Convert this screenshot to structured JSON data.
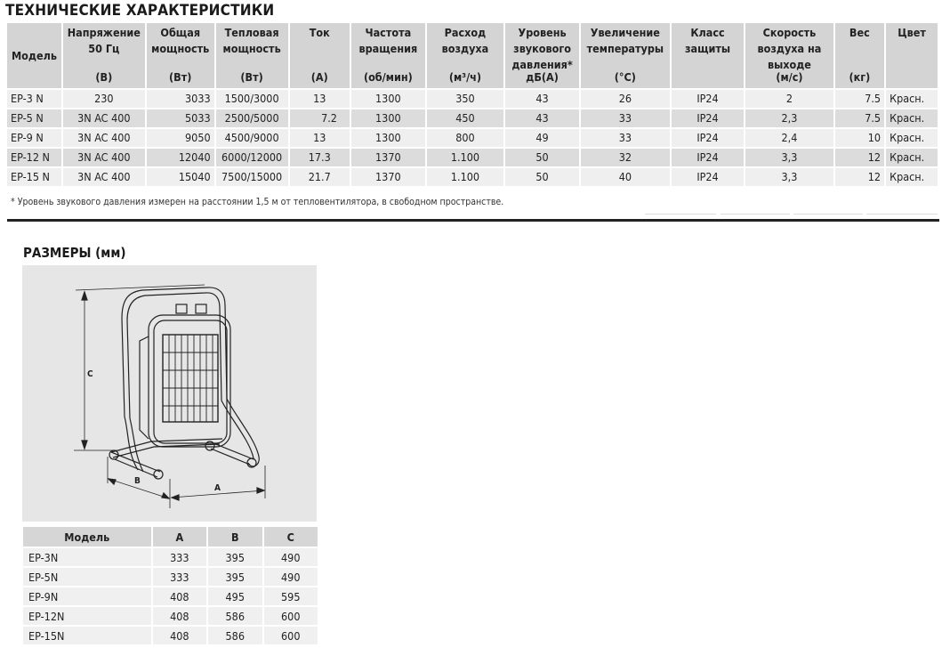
{
  "spec": {
    "title": "ТЕХНИЧЕСКИЕ ХАРАКТЕРИСТИКИ",
    "headers": [
      {
        "name": "Модель",
        "unit": ""
      },
      {
        "name": "Напряжение 50 Гц",
        "unit": "(В)"
      },
      {
        "name": "Общая мощность",
        "unit": "(Вт)"
      },
      {
        "name": "Тепловая мощность",
        "unit": "(Вт)"
      },
      {
        "name": "Ток",
        "unit": "(А)"
      },
      {
        "name": "Частота вращения",
        "unit": "(об/мин)"
      },
      {
        "name": "Расход воздуха",
        "unit": "(м³/ч)"
      },
      {
        "name": "Уровень звукового давления*",
        "unit": "дБ(А)"
      },
      {
        "name": "Увеличение температуры",
        "unit": "(°C)"
      },
      {
        "name": "Класс защиты",
        "unit": ""
      },
      {
        "name": "Скорость воздуха на выходе",
        "unit": "(м/с)"
      },
      {
        "name": "Вес",
        "unit": "(кг)"
      },
      {
        "name": "Цвет",
        "unit": ""
      }
    ],
    "rows": [
      [
        "EP-3 N",
        "230",
        "3033",
        "1500/3000",
        "13",
        "1300",
        "350",
        "43",
        "26",
        "IP24",
        "2",
        "7.5",
        "Красн."
      ],
      [
        "EP-5 N",
        "3N AC 400",
        "5033",
        "2500/5000",
        "7.2",
        "1300",
        "450",
        "43",
        "33",
        "IP24",
        "2,3",
        "7.5",
        "Красн."
      ],
      [
        "EP-9 N",
        "3N AC 400",
        "9050",
        "4500/9000",
        "13",
        "1300",
        "800",
        "49",
        "33",
        "IP24",
        "2,4",
        "10",
        "Красн."
      ],
      [
        "EP-12 N",
        "3N AC 400",
        "12040",
        "6000/12000",
        "17.3",
        "1370",
        "1.100",
        "50",
        "32",
        "IP24",
        "3,3",
        "12",
        "Красн."
      ],
      [
        "EP-15 N",
        "3N AC 400",
        "15040",
        "7500/15000",
        "21.7",
        "1370",
        "1.100",
        "50",
        "40",
        "IP24",
        "3,3",
        "12",
        "Красн."
      ]
    ],
    "footnote": "* Уровень звукового давления измерен на расстоянии 1,5 м от тепловентилятора, в свободном пространстве."
  },
  "dimensions": {
    "title": "РАЗМЕРЫ (мм)",
    "labels": {
      "a": "A",
      "b": "B",
      "c": "C"
    },
    "headers": [
      "Модель",
      "A",
      "B",
      "C"
    ],
    "rows": [
      [
        "EP-3N",
        "333",
        "395",
        "490"
      ],
      [
        "EP-5N",
        "333",
        "395",
        "490"
      ],
      [
        "EP-9N",
        "408",
        "495",
        "595"
      ],
      [
        "EP-12N",
        "408",
        "586",
        "600"
      ],
      [
        "EP-15N",
        "408",
        "586",
        "600"
      ]
    ]
  }
}
